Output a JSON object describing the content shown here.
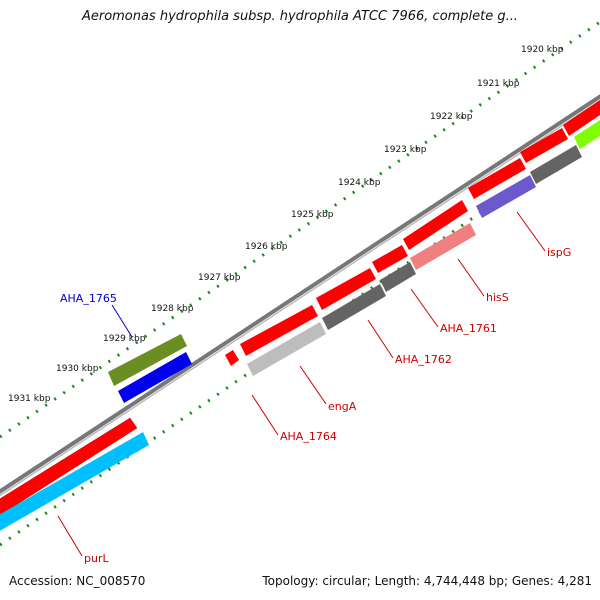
{
  "title": "Aeromonas hydrophila subsp. hydrophila ATCC 7966, complete g...",
  "footer": {
    "accession": "Accession: NC_008570",
    "summary": "Topology: circular; Length: 4,744,448 bp; Genes: 4,281"
  },
  "scale_labels": [
    "1920 kbp",
    "1921 kbp",
    "1922 kbp",
    "1923 kbp",
    "1924 kbp",
    "1925 kbp",
    "1926 kbp",
    "1927 kbp",
    "1928 kbp",
    "1929 kbp",
    "1930 kbp",
    "1931 kbp"
  ],
  "gene_labels": [
    {
      "text": "AHA_1765",
      "color": "#0000cc"
    },
    {
      "text": "AHA_1764",
      "color": "#cc0000"
    },
    {
      "text": "engA",
      "color": "#cc0000"
    },
    {
      "text": "AHA_1762",
      "color": "#cc0000"
    },
    {
      "text": "AHA_1761",
      "color": "#cc0000"
    },
    {
      "text": "hisS",
      "color": "#cc0000"
    },
    {
      "text": "ispG",
      "color": "#cc0000"
    },
    {
      "text": "purL",
      "color": "#cc0000"
    }
  ],
  "colors": {
    "cds_forward": "#ff0000",
    "backbone": "#808080",
    "tick_green": "#1a8a1a",
    "olive": "#6b8e23",
    "blue": "#0000ee",
    "light_gray": "#bdbdbd",
    "dark_gray": "#646464",
    "pink": "#f08080",
    "purple": "#6a5acd",
    "cyan": "#00bfff",
    "lime": "#7fff00"
  }
}
